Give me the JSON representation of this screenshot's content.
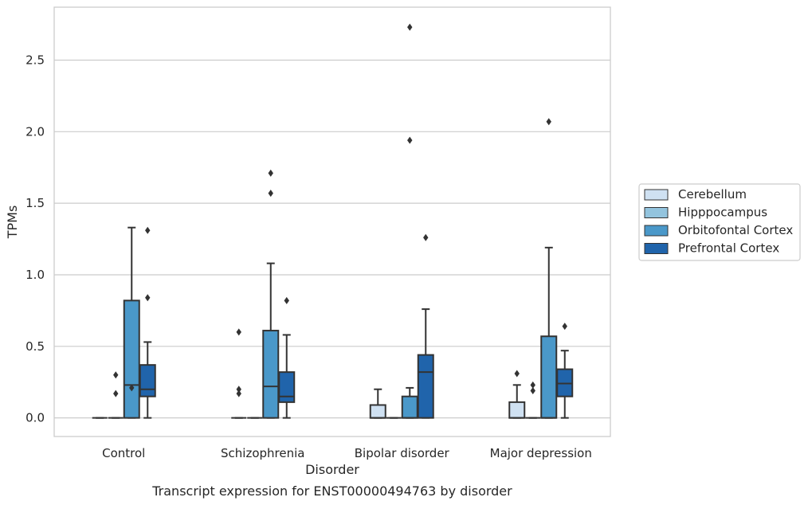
{
  "chart_data": {
    "type": "box",
    "title": "Transcript expression for ENST00000494763 by disorder",
    "xlabel": "Disorder",
    "ylabel": "TPMs",
    "ylim": [
      -0.13,
      2.87
    ],
    "yticks": [
      0.0,
      0.5,
      1.0,
      1.5,
      2.0,
      2.5
    ],
    "ytick_labels": [
      "0.0",
      "0.5",
      "1.0",
      "1.5",
      "2.0",
      "2.5"
    ],
    "categories": [
      "Control",
      "Schizophrenia",
      "Bipolar disorder",
      "Major depression"
    ],
    "grid": "horizontal",
    "legend_position": "right",
    "series": [
      {
        "name": "Cerebellum",
        "color": "#cfe1f2",
        "boxes": [
          {
            "q1": 0.0,
            "median": 0.0,
            "q3": 0.0,
            "whislo": 0.0,
            "whishi": 0.0,
            "fliers": []
          },
          {
            "q1": 0.0,
            "median": 0.0,
            "q3": 0.0,
            "whislo": 0.0,
            "whishi": 0.0,
            "fliers": [
              0.6,
              0.2,
              0.17
            ]
          },
          {
            "q1": 0.0,
            "median": 0.0,
            "q3": 0.09,
            "whislo": 0.0,
            "whishi": 0.2,
            "fliers": []
          },
          {
            "q1": 0.0,
            "median": 0.0,
            "q3": 0.11,
            "whislo": 0.0,
            "whishi": 0.23,
            "fliers": [
              0.31
            ]
          }
        ]
      },
      {
        "name": "Hipppocampus",
        "color": "#93c4de",
        "boxes": [
          {
            "q1": 0.0,
            "median": 0.0,
            "q3": 0.0,
            "whislo": 0.0,
            "whishi": 0.0,
            "fliers": [
              0.3,
              0.17
            ]
          },
          {
            "q1": 0.0,
            "median": 0.0,
            "q3": 0.0,
            "whislo": 0.0,
            "whishi": 0.0,
            "fliers": []
          },
          {
            "q1": 0.0,
            "median": 0.0,
            "q3": 0.0,
            "whislo": 0.0,
            "whishi": 0.0,
            "fliers": []
          },
          {
            "q1": 0.0,
            "median": 0.0,
            "q3": 0.0,
            "whislo": 0.0,
            "whishi": 0.0,
            "fliers": [
              0.23,
              0.19
            ]
          }
        ]
      },
      {
        "name": "Orbitofontal Cortex",
        "color": "#4a98c9",
        "boxes": [
          {
            "q1": 0.0,
            "median": 0.23,
            "q3": 0.82,
            "whislo": 0.0,
            "whishi": 1.33,
            "fliers": [
              0.21
            ]
          },
          {
            "q1": 0.0,
            "median": 0.22,
            "q3": 0.61,
            "whislo": 0.0,
            "whishi": 1.08,
            "fliers": [
              1.71,
              1.57
            ]
          },
          {
            "q1": 0.0,
            "median": 0.0,
            "q3": 0.15,
            "whislo": 0.0,
            "whishi": 0.21,
            "fliers": [
              2.73,
              1.94
            ]
          },
          {
            "q1": 0.0,
            "median": 0.0,
            "q3": 0.57,
            "whislo": 0.0,
            "whishi": 1.19,
            "fliers": [
              2.07
            ]
          }
        ]
      },
      {
        "name": "Prefrontal Cortex",
        "color": "#2064ab",
        "boxes": [
          {
            "q1": 0.15,
            "median": 0.2,
            "q3": 0.37,
            "whislo": 0.0,
            "whishi": 0.53,
            "fliers": [
              1.31,
              0.84
            ]
          },
          {
            "q1": 0.11,
            "median": 0.15,
            "q3": 0.32,
            "whislo": 0.0,
            "whishi": 0.58,
            "fliers": [
              0.82
            ]
          },
          {
            "q1": 0.0,
            "median": 0.32,
            "q3": 0.44,
            "whislo": 0.0,
            "whishi": 0.76,
            "fliers": [
              1.26
            ]
          },
          {
            "q1": 0.15,
            "median": 0.24,
            "q3": 0.34,
            "whislo": 0.0,
            "whishi": 0.47,
            "fliers": [
              0.64
            ]
          }
        ]
      }
    ]
  }
}
